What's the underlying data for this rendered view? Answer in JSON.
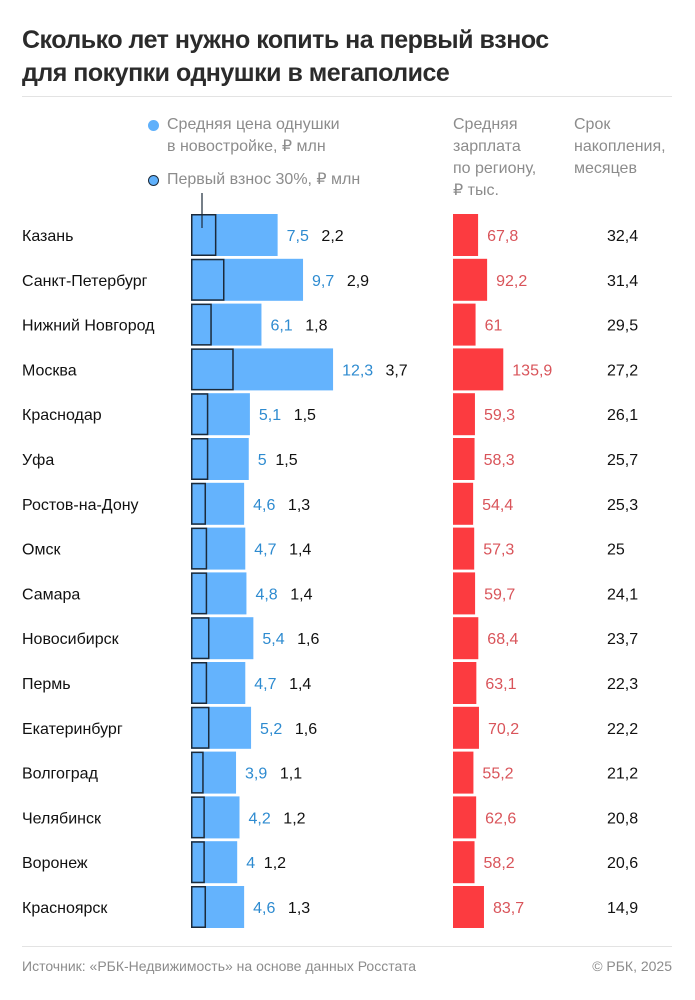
{
  "header": {
    "title_line1": "Сколько лет нужно копить на первый взнос",
    "title_line2": "для покупки однушки в мегаполисе"
  },
  "legend": {
    "price_line1": "Средняя цена однушки",
    "price_line2": "в новостройке, ₽ млн",
    "downpayment": "Первый взнос 30%, ₽ млн"
  },
  "columns": {
    "salary_lines": [
      "Средняя",
      "зарплата",
      "по региону,",
      "₽ тыс."
    ],
    "months_lines": [
      "Срок",
      "накопления,",
      "месяцев"
    ]
  },
  "colors": {
    "price_bar": "#64b3fd",
    "downpayment_outline": "#1b2a3a",
    "salary_bar": "#fc3b40",
    "price_label": "#2e8bd0",
    "salary_label": "#d9545a"
  },
  "chart_data": {
    "type": "bar",
    "title": "Сколько лет нужно копить на первый взнос для покупки однушки в мегаполисе",
    "categories": [
      "Казань",
      "Санкт-Петербург",
      "Нижний Новгород",
      "Москва",
      "Краснодар",
      "Уфа",
      "Ростов-на-Дону",
      "Омск",
      "Самара",
      "Новосибирск",
      "Пермь",
      "Екатеринбург",
      "Волгоград",
      "Челябинск",
      "Воронеж",
      "Красноярск"
    ],
    "series": [
      {
        "name": "Средняя цена однушки в новостройке, ₽ млн",
        "values": [
          7.5,
          9.7,
          6.1,
          12.3,
          5.1,
          5,
          4.6,
          4.7,
          4.8,
          5.4,
          4.7,
          5.2,
          3.9,
          4.2,
          4,
          4.6
        ],
        "labels": [
          "7,5",
          "9,7",
          "6,1",
          "12,3",
          "5,1",
          "5",
          "4,6",
          "4,7",
          "4,8",
          "5,4",
          "4,7",
          "5,2",
          "3,9",
          "4,2",
          "4",
          "4,6"
        ]
      },
      {
        "name": "Первый взнос 30%, ₽ млн",
        "values": [
          2.2,
          2.9,
          1.8,
          3.7,
          1.5,
          1.5,
          1.3,
          1.4,
          1.4,
          1.6,
          1.4,
          1.6,
          1.1,
          1.2,
          1.2,
          1.3
        ],
        "labels": [
          "2,2",
          "2,9",
          "1,8",
          "3,7",
          "1,5",
          "1,5",
          "1,3",
          "1,4",
          "1,4",
          "1,6",
          "1,4",
          "1,6",
          "1,1",
          "1,2",
          "1,2",
          "1,3"
        ]
      },
      {
        "name": "Средняя зарплата по региону, ₽ тыс.",
        "values": [
          67.8,
          92.2,
          61,
          135.9,
          59.3,
          58.3,
          54.4,
          57.3,
          59.7,
          68.4,
          63.1,
          70.2,
          55.2,
          62.6,
          58.2,
          83.7
        ],
        "labels": [
          "67,8",
          "92,2",
          "61",
          "135,9",
          "59,3",
          "58,3",
          "54,4",
          "57,3",
          "59,7",
          "68,4",
          "63,1",
          "70,2",
          "55,2",
          "62,6",
          "58,2",
          "83,7"
        ]
      },
      {
        "name": "Срок накопления, месяцев",
        "values": [
          32.4,
          31.4,
          29.5,
          27.2,
          26.1,
          25.7,
          25.3,
          25,
          24.1,
          23.7,
          22.3,
          22.2,
          21.2,
          20.8,
          20.6,
          14.9
        ],
        "labels": [
          "32,4",
          "31,4",
          "29,5",
          "27,2",
          "26,1",
          "25,7",
          "25,3",
          "25",
          "24,1",
          "23,7",
          "22,3",
          "22,2",
          "21,2",
          "20,8",
          "20,6",
          "14,9"
        ]
      }
    ],
    "xlabel": "",
    "ylabel": "",
    "grid": false,
    "legend": "top-left"
  },
  "footer": {
    "source": "Источник: «РБК-Недвижимость» на основе данных Росстата",
    "copyright": "© РБК, 2025"
  }
}
